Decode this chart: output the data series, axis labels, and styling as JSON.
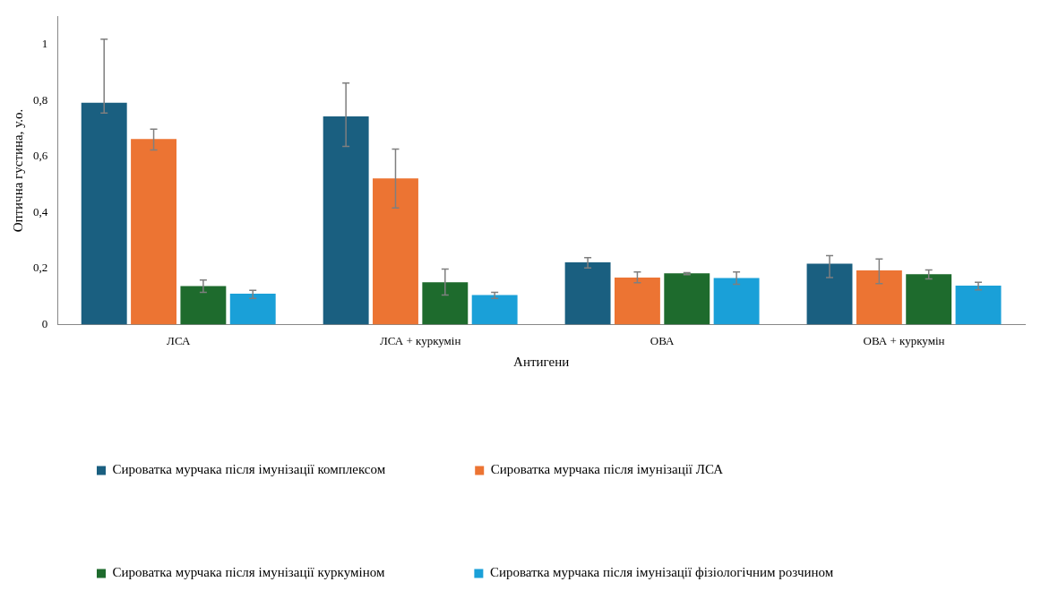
{
  "chart_data": {
    "type": "bar",
    "xlabel": "Антигени",
    "ylabel": "Оптична густина, у.о.",
    "categories": [
      "ЛСА",
      "ЛСА + куркумін",
      "ОВА",
      "ОВА + куркумін"
    ],
    "series": [
      {
        "name": "Сироватка мурчака після імунізації комплексом",
        "color": "#1a5f80",
        "values": [
          0.793,
          0.744,
          0.222,
          0.217
        ],
        "errors": [
          [
            0.756,
            1.02
          ],
          [
            0.637,
            0.863
          ],
          [
            0.202,
            0.239
          ],
          [
            0.168,
            0.246
          ]
        ]
      },
      {
        "name": "Сироватка мурчака після імунізації ЛСА",
        "color": "#ec7433",
        "values": [
          0.663,
          0.522,
          0.168,
          0.193
        ],
        "errors": [
          [
            0.624,
            0.698
          ],
          [
            0.417,
            0.627
          ],
          [
            0.149,
            0.188
          ],
          [
            0.146,
            0.234
          ]
        ]
      },
      {
        "name": "Сироватка мурчака після імунізації куркуміном",
        "color": "#1e6b2d",
        "values": [
          0.137,
          0.151,
          0.183,
          0.18
        ],
        "errors": [
          [
            0.115,
            0.159
          ],
          [
            0.105,
            0.198
          ],
          [
            0.178,
            0.185
          ],
          [
            0.163,
            0.195
          ]
        ]
      },
      {
        "name": "Сироватка мурчака після імунізації фізіологічним розчином",
        "color": "#1aa0d8",
        "values": [
          0.11,
          0.105,
          0.166,
          0.139
        ],
        "errors": [
          [
            0.093,
            0.122
          ],
          [
            0.093,
            0.115
          ],
          [
            0.144,
            0.188
          ],
          [
            0.124,
            0.151
          ]
        ]
      }
    ],
    "ylim": [
      0,
      1.1
    ],
    "yticks": [
      0,
      {
        "value": 0.2,
        "label": "0,2"
      },
      {
        "value": 0.4,
        "label": "0,4"
      },
      {
        "value": 0.6,
        "label": "0,6"
      },
      {
        "value": 0.8,
        "label": "0,8"
      },
      1
    ],
    "grid": false,
    "legend": "bottom"
  }
}
